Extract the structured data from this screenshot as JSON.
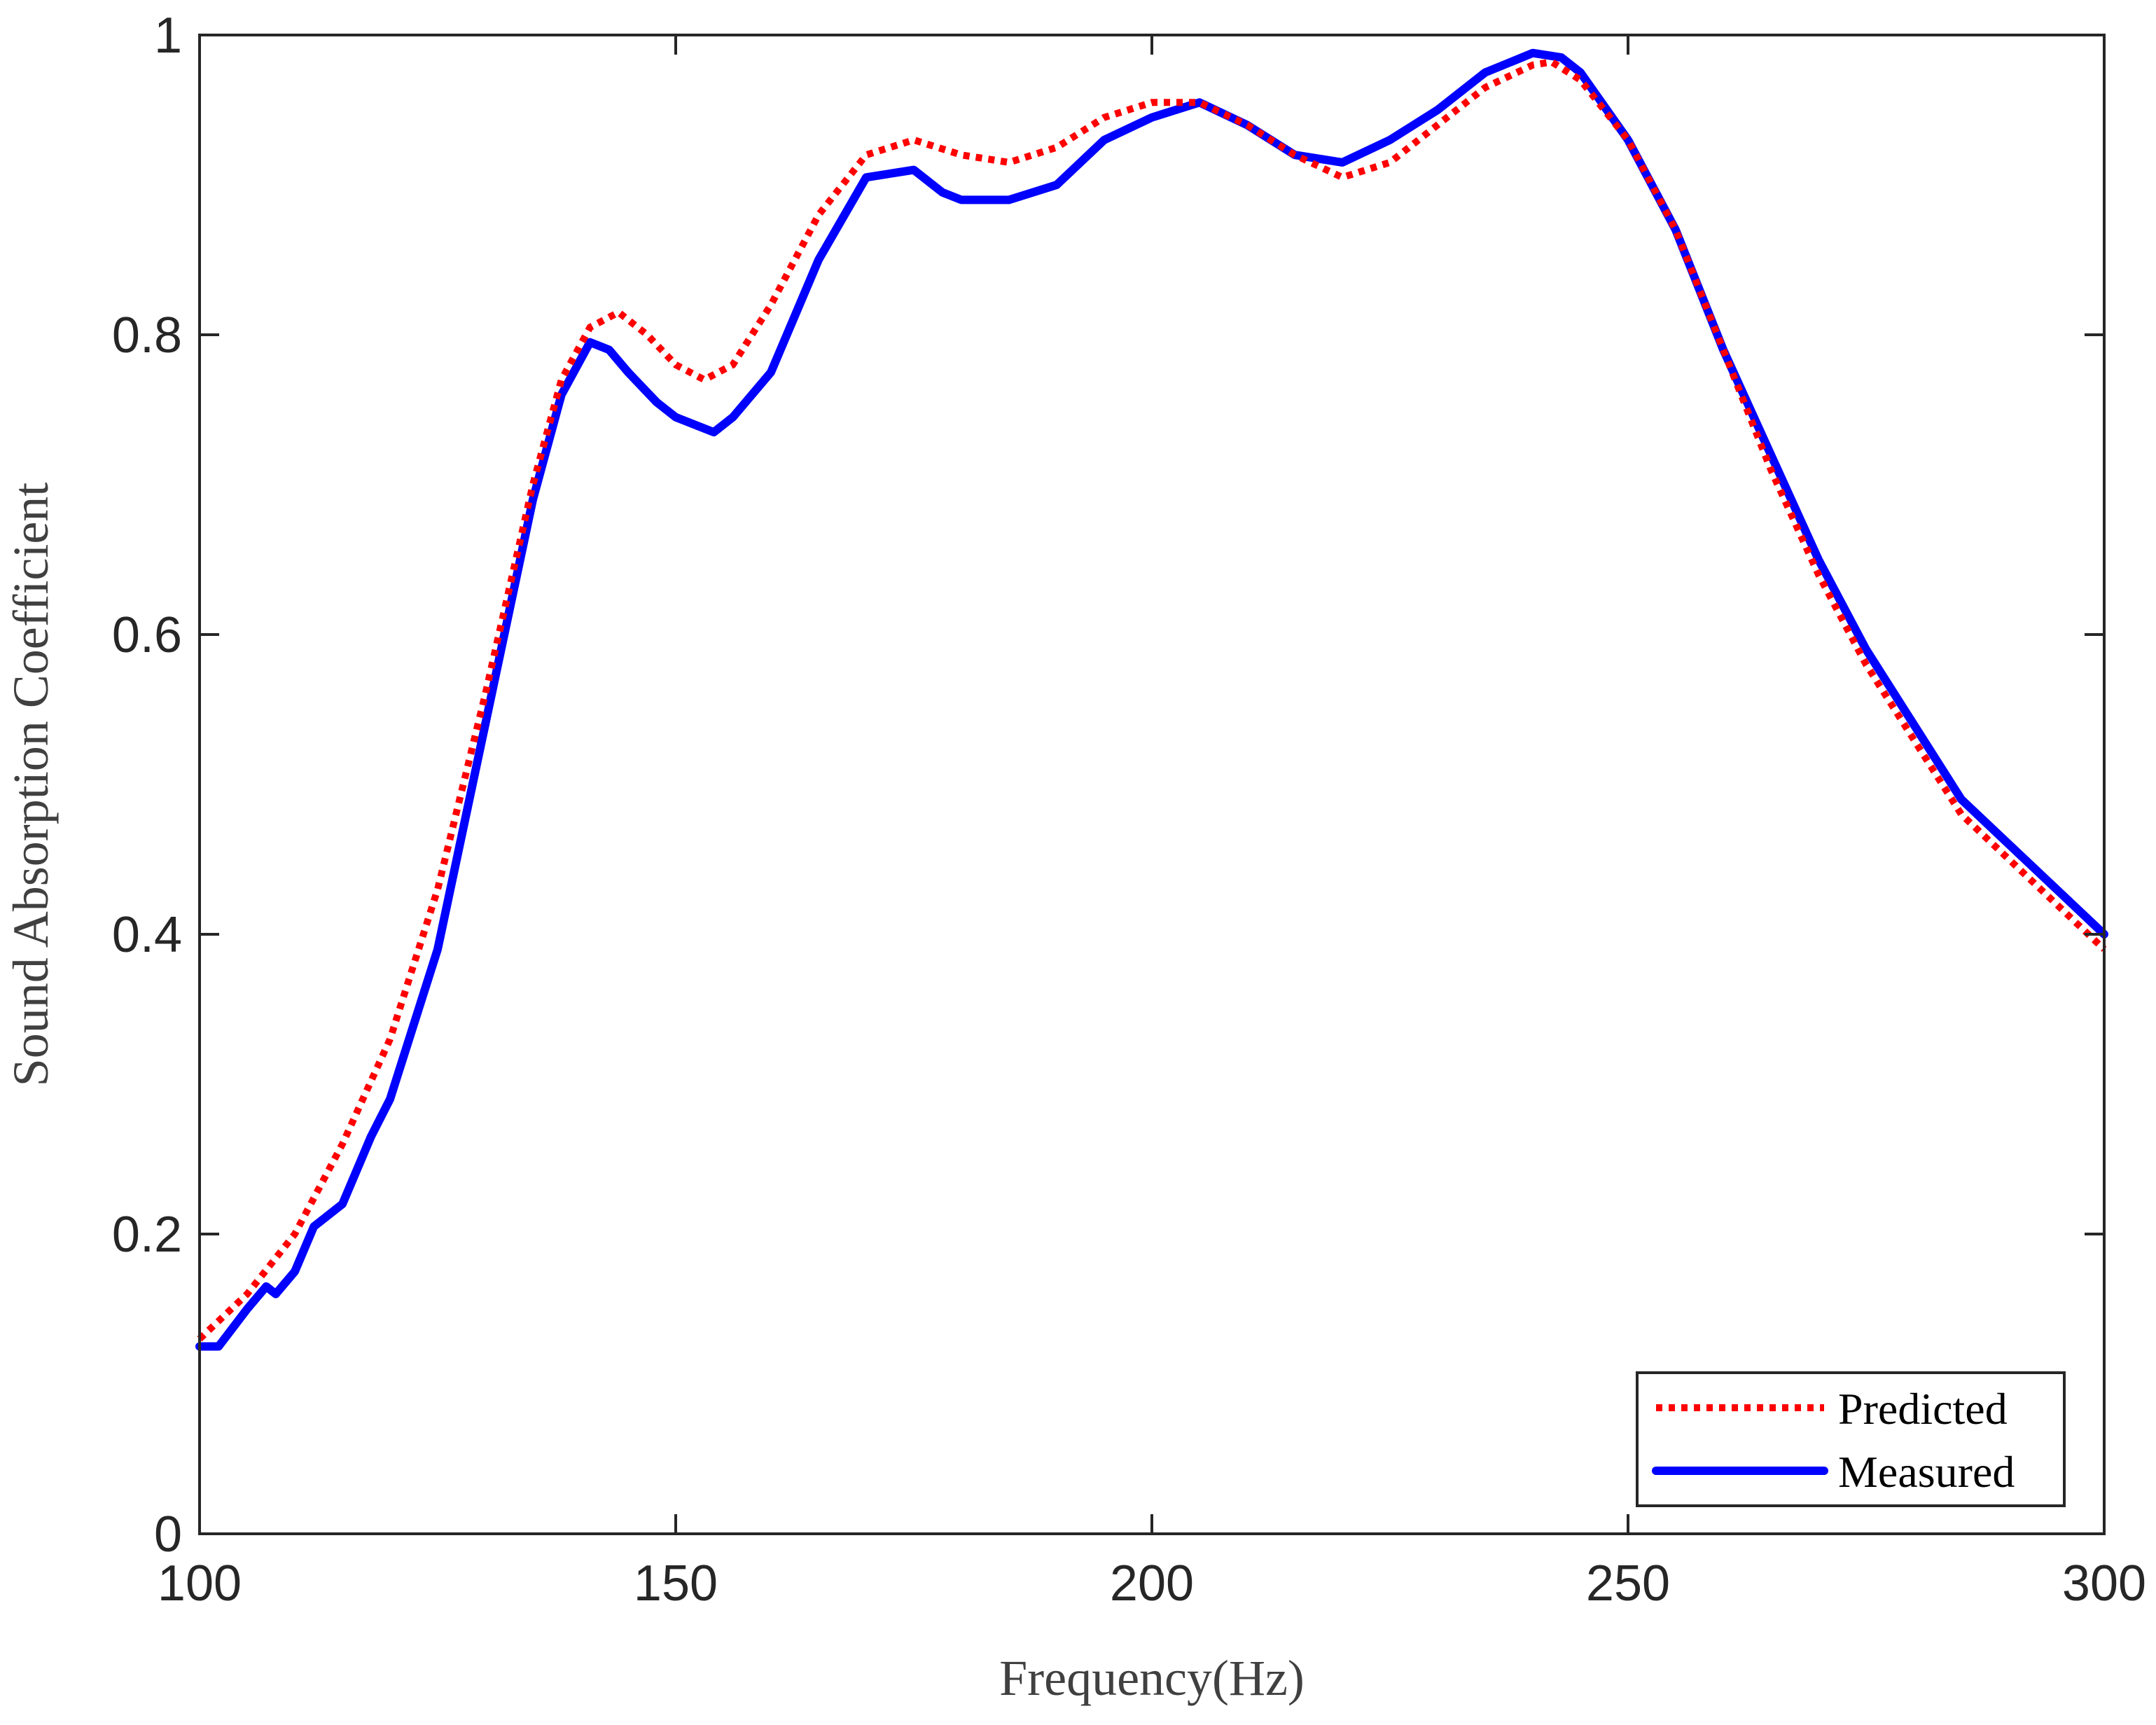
{
  "chart_data": {
    "type": "line",
    "title": "",
    "xlabel": "Frequency(Hz)",
    "ylabel": "Sound Absorption Coefficient",
    "xlim": [
      100,
      300
    ],
    "ylim": [
      0,
      1
    ],
    "x_ticks": [
      100,
      150,
      200,
      250,
      300
    ],
    "y_ticks": [
      0,
      0.2,
      0.4,
      0.6,
      0.8,
      1
    ],
    "x_tick_labels": [
      "100",
      "150",
      "200",
      "250",
      "300"
    ],
    "y_tick_labels": [
      "0",
      "0.2",
      "0.4",
      "0.6",
      "0.8",
      "1"
    ],
    "grid": false,
    "legend_position": "bottom-right",
    "legend": [
      "Predicted",
      "Measured"
    ],
    "series": [
      {
        "name": "Predicted",
        "color": "#ff0000",
        "style": "dotted",
        "x": [
          100,
          105,
          110,
          115,
          120,
          125,
          130,
          135,
          138,
          141,
          144,
          147,
          150,
          153,
          156,
          160,
          165,
          170,
          175,
          180,
          185,
          190,
          195,
          200,
          205,
          210,
          215,
          220,
          225,
          230,
          235,
          240,
          242,
          245,
          250,
          255,
          260,
          265,
          270,
          275,
          280,
          285,
          290,
          295,
          300
        ],
        "y": [
          0.13,
          0.16,
          0.2,
          0.26,
          0.33,
          0.43,
          0.56,
          0.7,
          0.77,
          0.805,
          0.815,
          0.8,
          0.78,
          0.77,
          0.78,
          0.82,
          0.88,
          0.92,
          0.93,
          0.92,
          0.915,
          0.925,
          0.945,
          0.955,
          0.955,
          0.94,
          0.92,
          0.905,
          0.915,
          0.94,
          0.965,
          0.98,
          0.982,
          0.97,
          0.93,
          0.87,
          0.79,
          0.71,
          0.64,
          0.58,
          0.53,
          0.48,
          0.45,
          0.42,
          0.39
        ]
      },
      {
        "name": "Measured",
        "color": "#0000ff",
        "style": "solid",
        "x": [
          100,
          102,
          105,
          107,
          108,
          110,
          112,
          115,
          118,
          120,
          125,
          130,
          135,
          138,
          141,
          143,
          145,
          148,
          150,
          152,
          154,
          156,
          158,
          160,
          165,
          170,
          175,
          178,
          180,
          185,
          190,
          195,
          200,
          205,
          210,
          215,
          220,
          225,
          230,
          235,
          240,
          243,
          245,
          250,
          255,
          260,
          265,
          270,
          275,
          280,
          285,
          290,
          295,
          300
        ],
        "y": [
          0.125,
          0.125,
          0.15,
          0.165,
          0.16,
          0.175,
          0.205,
          0.22,
          0.265,
          0.29,
          0.39,
          0.54,
          0.69,
          0.76,
          0.795,
          0.79,
          0.775,
          0.755,
          0.745,
          0.74,
          0.735,
          0.745,
          0.76,
          0.775,
          0.85,
          0.905,
          0.91,
          0.895,
          0.89,
          0.89,
          0.9,
          0.93,
          0.945,
          0.955,
          0.94,
          0.92,
          0.915,
          0.93,
          0.95,
          0.975,
          0.988,
          0.985,
          0.975,
          0.93,
          0.87,
          0.79,
          0.72,
          0.65,
          0.59,
          0.54,
          0.49,
          0.46,
          0.43,
          0.4
        ]
      }
    ]
  }
}
